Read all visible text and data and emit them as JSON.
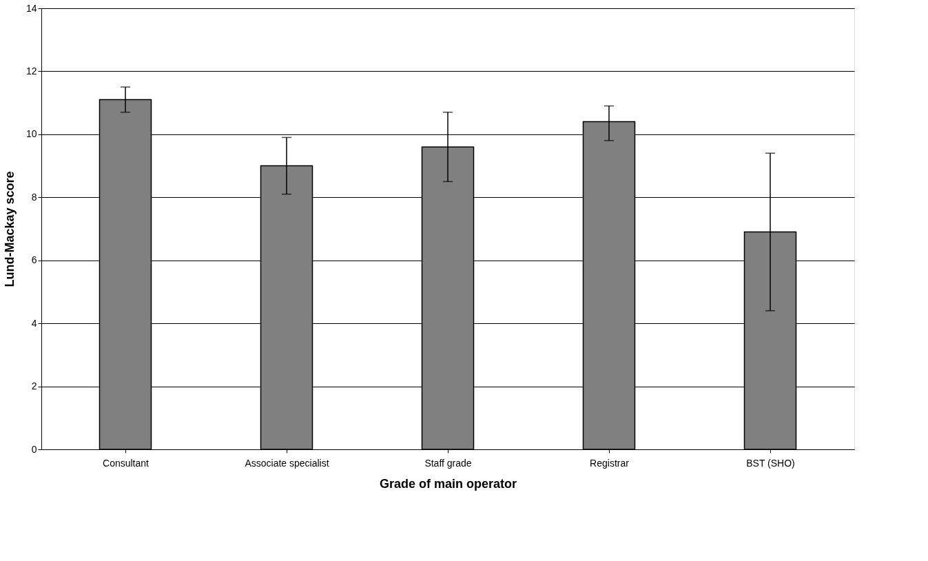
{
  "chart_data": {
    "type": "bar",
    "xlabel": "Grade of main operator",
    "ylabel": "Lund-Mackay score",
    "categories": [
      "Consultant",
      "Associate specialist",
      "Staff grade",
      "Registrar",
      "BST (SHO)"
    ],
    "values": [
      11.1,
      9.0,
      9.6,
      10.4,
      6.9
    ],
    "errors": [
      [
        10.7,
        11.5
      ],
      [
        8.1,
        9.9
      ],
      [
        8.5,
        10.7
      ],
      [
        9.8,
        10.9
      ],
      [
        4.4,
        9.4
      ]
    ],
    "color": "#808080",
    "ylim": [
      0,
      14
    ],
    "yticks": [
      0,
      2,
      4,
      6,
      8,
      10,
      12,
      14
    ],
    "grid": "y"
  }
}
